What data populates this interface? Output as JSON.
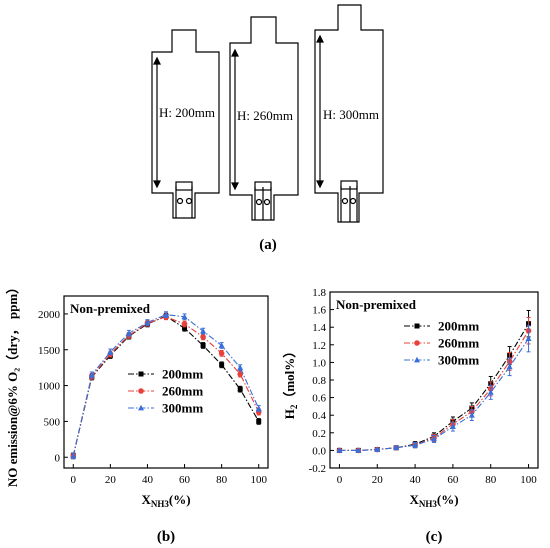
{
  "panel_a": {
    "label": "(a)",
    "schematics": [
      {
        "height_label": "H: 200mm"
      },
      {
        "height_label": "H: 260mm"
      },
      {
        "height_label": "H: 300mm"
      }
    ]
  },
  "chart_data": [
    {
      "type": "line",
      "panel_label": "(b)",
      "annotation": "Non-premixed",
      "ylabel": "NO emission@6% O₂（dry， ppm）",
      "xlabel_main": "X",
      "xlabel_sub": "NH3",
      "xlabel_unit": "(%)",
      "xlim": [
        -5,
        105
      ],
      "ylim": [
        -150,
        2250
      ],
      "x_ticks": [
        0,
        20,
        40,
        60,
        80,
        100
      ],
      "y_ticks": [
        0,
        500,
        1000,
        1500,
        2000
      ],
      "x": [
        0,
        10,
        20,
        30,
        40,
        50,
        60,
        70,
        80,
        90,
        100
      ],
      "series": [
        {
          "name": "200mm",
          "color": "#000000",
          "marker": "square",
          "dash": "dashdot",
          "values": [
            20,
            1120,
            1420,
            1690,
            1860,
            1970,
            1800,
            1560,
            1290,
            950,
            500
          ],
          "err": 40
        },
        {
          "name": "260mm",
          "color": "#e8413a",
          "marker": "circle",
          "dash": "dashdot",
          "values": [
            20,
            1130,
            1440,
            1700,
            1870,
            1960,
            1860,
            1680,
            1450,
            1160,
            630
          ],
          "err": 40
        },
        {
          "name": "300mm",
          "color": "#3a6fd8",
          "marker": "triangle",
          "dash": "dashdot",
          "values": [
            20,
            1150,
            1470,
            1730,
            1880,
            1990,
            1960,
            1760,
            1560,
            1250,
            680
          ],
          "err": 40
        }
      ],
      "legend_position": "center-right"
    },
    {
      "type": "line",
      "panel_label": "(c)",
      "annotation": "Non-premixed",
      "ylabel_main": "H",
      "ylabel_sub": "2",
      "ylabel_unit": "（mol%）",
      "xlabel_main": "X",
      "xlabel_sub": "NH3",
      "xlabel_unit": "(%)",
      "xlim": [
        -5,
        105
      ],
      "ylim": [
        -0.2,
        1.8
      ],
      "x_ticks": [
        0,
        20,
        40,
        60,
        80,
        100
      ],
      "y_ticks": [
        "-0.2",
        "0.0",
        "0.2",
        "0.4",
        "0.6",
        "0.8",
        "1.0",
        "1.2",
        "1.4",
        "1.6",
        "1.8"
      ],
      "x": [
        0,
        10,
        20,
        30,
        40,
        50,
        60,
        70,
        80,
        90,
        100
      ],
      "series": [
        {
          "name": "200mm",
          "color": "#000000",
          "marker": "square",
          "dash": "dashdot",
          "values": [
            0.0,
            0.0,
            0.01,
            0.03,
            0.07,
            0.16,
            0.33,
            0.48,
            0.76,
            1.08,
            1.44
          ],
          "err": [
            0.01,
            0.01,
            0.01,
            0.02,
            0.03,
            0.04,
            0.05,
            0.06,
            0.08,
            0.1,
            0.15
          ]
        },
        {
          "name": "260mm",
          "color": "#e8413a",
          "marker": "circle",
          "dash": "dashdot",
          "values": [
            0.0,
            0.0,
            0.01,
            0.03,
            0.06,
            0.14,
            0.3,
            0.44,
            0.7,
            1.01,
            1.36
          ],
          "err": [
            0.01,
            0.01,
            0.01,
            0.02,
            0.03,
            0.04,
            0.05,
            0.06,
            0.08,
            0.1,
            0.15
          ]
        },
        {
          "name": "300mm",
          "color": "#3a6fd8",
          "marker": "triangle",
          "dash": "dashdot",
          "values": [
            0.0,
            0.0,
            0.01,
            0.03,
            0.06,
            0.13,
            0.27,
            0.4,
            0.66,
            0.95,
            1.27
          ],
          "err": [
            0.01,
            0.01,
            0.01,
            0.02,
            0.03,
            0.04,
            0.05,
            0.06,
            0.08,
            0.1,
            0.15
          ]
        }
      ],
      "legend_position": "top-center"
    }
  ]
}
